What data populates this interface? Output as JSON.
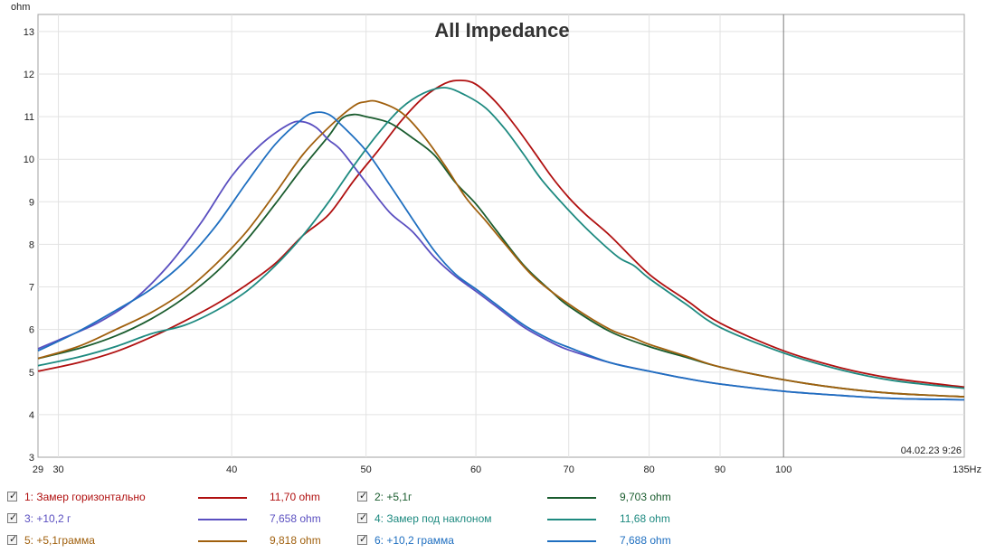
{
  "chart_data": {
    "type": "line",
    "title": "All Impedance",
    "xlabel": "Hz",
    "ylabel": "ohm",
    "xscale": "log",
    "xlim": [
      29,
      135
    ],
    "ylim": [
      3,
      13.4
    ],
    "x_ticks": [
      29,
      30,
      40,
      50,
      60,
      70,
      80,
      90,
      100,
      135
    ],
    "x_tick_labels": [
      "29",
      "30",
      "40",
      "50",
      "60",
      "70",
      "80",
      "90",
      "100",
      "135Hz"
    ],
    "y_ticks": [
      3,
      4,
      5,
      6,
      7,
      8,
      9,
      10,
      11,
      12,
      13
    ],
    "timestamp": "04.02.23 9:26",
    "series": [
      {
        "name": "1: Замер горизонтально",
        "value_label": "11,70 ohm",
        "color": "#b01010",
        "label_color": "#b01010",
        "points": [
          [
            29,
            5.02
          ],
          [
            31,
            5.22
          ],
          [
            33,
            5.48
          ],
          [
            35,
            5.82
          ],
          [
            37,
            6.2
          ],
          [
            39,
            6.6
          ],
          [
            41,
            7.05
          ],
          [
            43,
            7.55
          ],
          [
            45,
            8.2
          ],
          [
            47,
            8.7
          ],
          [
            49,
            9.5
          ],
          [
            51,
            10.2
          ],
          [
            53,
            10.9
          ],
          [
            55,
            11.45
          ],
          [
            57,
            11.78
          ],
          [
            58.5,
            11.85
          ],
          [
            60,
            11.76
          ],
          [
            62,
            11.35
          ],
          [
            64,
            10.8
          ],
          [
            66,
            10.2
          ],
          [
            68,
            9.6
          ],
          [
            70,
            9.1
          ],
          [
            72,
            8.7
          ],
          [
            75,
            8.2
          ],
          [
            80,
            7.3
          ],
          [
            85,
            6.7
          ],
          [
            90,
            6.15
          ],
          [
            100,
            5.5
          ],
          [
            110,
            5.1
          ],
          [
            120,
            4.85
          ],
          [
            135,
            4.65
          ]
        ]
      },
      {
        "name": "2: +5,1г",
        "value_label": "9,703 ohm",
        "color": "#1a5c2e",
        "label_color": "#1a5c2e",
        "points": [
          [
            29,
            5.32
          ],
          [
            31,
            5.55
          ],
          [
            33,
            5.85
          ],
          [
            35,
            6.25
          ],
          [
            37,
            6.75
          ],
          [
            39,
            7.35
          ],
          [
            41,
            8.1
          ],
          [
            43,
            8.95
          ],
          [
            45,
            9.8
          ],
          [
            47,
            10.55
          ],
          [
            48,
            10.95
          ],
          [
            49,
            11.05
          ],
          [
            50,
            11.0
          ],
          [
            52,
            10.85
          ],
          [
            54,
            10.5
          ],
          [
            56,
            10.1
          ],
          [
            58,
            9.45
          ],
          [
            60,
            8.95
          ],
          [
            62,
            8.35
          ],
          [
            65,
            7.5
          ],
          [
            68,
            6.9
          ],
          [
            70,
            6.55
          ],
          [
            75,
            5.95
          ],
          [
            80,
            5.6
          ],
          [
            85,
            5.35
          ],
          [
            90,
            5.12
          ],
          [
            100,
            4.82
          ],
          [
            110,
            4.62
          ],
          [
            120,
            4.5
          ],
          [
            135,
            4.42
          ]
        ]
      },
      {
        "name": "3: +10,2 г",
        "value_label": "7,658 ohm",
        "color": "#5a4fc0",
        "label_color": "#5a4fc0",
        "points": [
          [
            29,
            5.55
          ],
          [
            30,
            5.75
          ],
          [
            32,
            6.15
          ],
          [
            34,
            6.7
          ],
          [
            36,
            7.5
          ],
          [
            38,
            8.5
          ],
          [
            40,
            9.6
          ],
          [
            42,
            10.35
          ],
          [
            44,
            10.82
          ],
          [
            45,
            10.88
          ],
          [
            46,
            10.75
          ],
          [
            47,
            10.45
          ],
          [
            48,
            10.2
          ],
          [
            50,
            9.45
          ],
          [
            52,
            8.75
          ],
          [
            54,
            8.3
          ],
          [
            56,
            7.7
          ],
          [
            58,
            7.25
          ],
          [
            60,
            6.9
          ],
          [
            62,
            6.55
          ],
          [
            65,
            6.05
          ],
          [
            68,
            5.7
          ],
          [
            70,
            5.52
          ],
          [
            75,
            5.22
          ],
          [
            80,
            5.02
          ],
          [
            85,
            4.85
          ],
          [
            90,
            4.72
          ],
          [
            100,
            4.55
          ],
          [
            110,
            4.45
          ],
          [
            120,
            4.38
          ],
          [
            135,
            4.35
          ]
        ]
      },
      {
        "name": "4: Замер под наклоном",
        "value_label": "11,68 ohm",
        "color": "#1e8a80",
        "label_color": "#1e8a80",
        "points": [
          [
            29,
            5.15
          ],
          [
            31,
            5.35
          ],
          [
            33,
            5.6
          ],
          [
            35,
            5.9
          ],
          [
            37,
            6.1
          ],
          [
            39,
            6.45
          ],
          [
            41,
            6.9
          ],
          [
            43,
            7.5
          ],
          [
            45,
            8.2
          ],
          [
            47,
            9.0
          ],
          [
            49,
            9.85
          ],
          [
            51,
            10.6
          ],
          [
            53,
            11.2
          ],
          [
            55,
            11.55
          ],
          [
            57,
            11.68
          ],
          [
            59,
            11.5
          ],
          [
            61,
            11.2
          ],
          [
            63,
            10.7
          ],
          [
            65,
            10.1
          ],
          [
            67,
            9.5
          ],
          [
            70,
            8.8
          ],
          [
            73,
            8.2
          ],
          [
            76,
            7.7
          ],
          [
            78,
            7.5
          ],
          [
            80,
            7.2
          ],
          [
            85,
            6.6
          ],
          [
            90,
            6.05
          ],
          [
            100,
            5.45
          ],
          [
            110,
            5.05
          ],
          [
            120,
            4.8
          ],
          [
            135,
            4.62
          ]
        ]
      },
      {
        "name": "5: +5,1грамма",
        "value_label": "9,818 ohm",
        "color": "#a0600e",
        "label_color": "#a0600e",
        "points": [
          [
            29,
            5.32
          ],
          [
            31,
            5.6
          ],
          [
            33,
            6.0
          ],
          [
            35,
            6.4
          ],
          [
            37,
            6.9
          ],
          [
            39,
            7.55
          ],
          [
            41,
            8.3
          ],
          [
            43,
            9.2
          ],
          [
            45,
            10.1
          ],
          [
            47,
            10.75
          ],
          [
            49,
            11.25
          ],
          [
            50,
            11.35
          ],
          [
            51,
            11.35
          ],
          [
            53,
            11.1
          ],
          [
            55,
            10.55
          ],
          [
            57,
            9.85
          ],
          [
            59,
            9.1
          ],
          [
            61,
            8.55
          ],
          [
            63,
            8.0
          ],
          [
            66,
            7.25
          ],
          [
            70,
            6.6
          ],
          [
            75,
            6.0
          ],
          [
            78,
            5.8
          ],
          [
            80,
            5.65
          ],
          [
            85,
            5.38
          ],
          [
            90,
            5.12
          ],
          [
            100,
            4.82
          ],
          [
            110,
            4.62
          ],
          [
            120,
            4.5
          ],
          [
            135,
            4.42
          ]
        ]
      },
      {
        "name": "6: +10,2 грамма",
        "value_label": "7,688 ohm",
        "color": "#1f6fc0",
        "label_color": "#1f6fc0",
        "points": [
          [
            29,
            5.5
          ],
          [
            31,
            5.95
          ],
          [
            33,
            6.45
          ],
          [
            35,
            6.95
          ],
          [
            37,
            7.6
          ],
          [
            39,
            8.45
          ],
          [
            41,
            9.45
          ],
          [
            43,
            10.35
          ],
          [
            45,
            10.95
          ],
          [
            46,
            11.1
          ],
          [
            47,
            11.05
          ],
          [
            48,
            10.8
          ],
          [
            50,
            10.2
          ],
          [
            52,
            9.4
          ],
          [
            54,
            8.6
          ],
          [
            56,
            7.85
          ],
          [
            58,
            7.3
          ],
          [
            60,
            6.95
          ],
          [
            62,
            6.6
          ],
          [
            65,
            6.1
          ],
          [
            68,
            5.75
          ],
          [
            70,
            5.58
          ],
          [
            75,
            5.22
          ],
          [
            80,
            5.02
          ],
          [
            85,
            4.85
          ],
          [
            90,
            4.72
          ],
          [
            100,
            4.55
          ],
          [
            110,
            4.45
          ],
          [
            120,
            4.38
          ],
          [
            135,
            4.35
          ]
        ]
      }
    ]
  }
}
